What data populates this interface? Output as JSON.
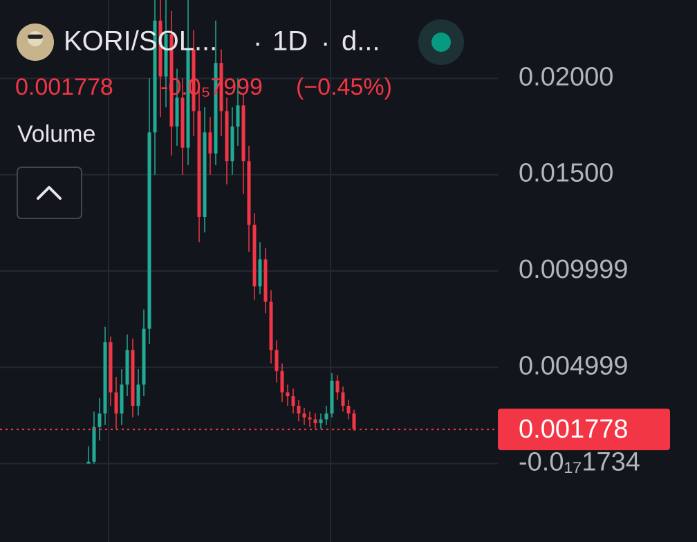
{
  "header": {
    "symbol": "KORI/SOL...",
    "interval": "1D",
    "source": "d...",
    "separator": "·",
    "price": "0.001778",
    "change": "-0.0₅7999",
    "change_pct": "(−0.45%)",
    "volume": "Volume"
  },
  "chart_data": {
    "type": "candlestick",
    "categories": [
      null,
      null,
      null,
      null,
      null,
      null,
      null,
      null,
      null,
      null,
      null,
      null,
      null,
      null,
      null,
      null,
      null,
      null,
      null,
      null,
      null,
      null,
      null,
      null,
      null,
      null,
      null,
      null,
      null,
      null,
      null,
      null,
      null,
      null,
      null,
      null,
      null,
      null,
      null,
      null,
      null,
      null,
      null,
      null,
      null,
      null,
      null,
      null,
      null
    ],
    "open": [
      0.0,
      0.0001,
      0.0019,
      0.0026,
      0.0063,
      0.0037,
      0.0026,
      0.0041,
      0.0059,
      0.003,
      0.0041,
      0.007,
      0.0172,
      0.023,
      0.0201,
      0.0223,
      0.0175,
      0.019,
      0.0164,
      0.0215,
      0.0183,
      0.0128,
      0.0172,
      0.0161,
      0.0208,
      0.0183,
      0.0157,
      0.0175,
      0.0186,
      0.0157,
      0.0124,
      0.0092,
      0.0106,
      0.0084,
      0.0059,
      0.0048,
      0.0037,
      0.0035,
      0.003,
      0.0026,
      0.0024,
      0.0023,
      0.0021,
      0.0023,
      0.0026,
      0.0043,
      0.0037,
      0.003,
      0.0026
    ],
    "high": [
      0.0009,
      0.0027,
      0.0034,
      0.0071,
      0.0066,
      0.0045,
      0.0049,
      0.0067,
      0.0065,
      0.0049,
      0.008,
      0.02,
      0.025,
      0.025,
      0.025,
      0.0235,
      0.0205,
      0.02,
      0.025,
      0.0225,
      0.0195,
      0.0185,
      0.018,
      0.023,
      0.0215,
      0.019,
      0.0185,
      0.02,
      0.0192,
      0.0165,
      0.013,
      0.0115,
      0.0112,
      0.009,
      0.0064,
      0.0052,
      0.0041,
      0.0039,
      0.0033,
      0.0029,
      0.0027,
      0.0026,
      0.0026,
      0.003,
      0.0047,
      0.0046,
      0.004,
      0.0033,
      0.0028
    ],
    "low": [
      0.0,
      0.0,
      0.0012,
      0.002,
      0.003,
      0.0018,
      0.002,
      0.0035,
      0.0024,
      0.0025,
      0.0035,
      0.0062,
      0.015,
      0.018,
      0.0185,
      0.016,
      0.0165,
      0.015,
      0.0155,
      0.017,
      0.0115,
      0.012,
      0.015,
      0.0155,
      0.017,
      0.0145,
      0.015,
      0.0165,
      0.014,
      0.011,
      0.0085,
      0.0088,
      0.0078,
      0.0052,
      0.0042,
      0.0032,
      0.003,
      0.0026,
      0.0022,
      0.002,
      0.0019,
      0.0018,
      0.0018,
      0.002,
      0.0024,
      0.0033,
      0.0027,
      0.0023,
      0.0017
    ],
    "close": [
      0.0001,
      0.0019,
      0.0026,
      0.0063,
      0.0037,
      0.0026,
      0.0041,
      0.0059,
      0.003,
      0.0041,
      0.007,
      0.0172,
      0.023,
      0.0201,
      0.0223,
      0.0175,
      0.019,
      0.0164,
      0.0215,
      0.0183,
      0.0128,
      0.0172,
      0.0161,
      0.0208,
      0.0183,
      0.0157,
      0.0175,
      0.0186,
      0.0157,
      0.0124,
      0.0092,
      0.0106,
      0.0084,
      0.0059,
      0.0048,
      0.0037,
      0.0035,
      0.003,
      0.0026,
      0.0024,
      0.0023,
      0.0021,
      0.0023,
      0.0026,
      0.0043,
      0.0037,
      0.003,
      0.0026,
      0.0018
    ],
    "up_color": "#22ab94",
    "down_color": "#f23645",
    "ylim": [
      -0.00407,
      0.02407
    ],
    "yticks": [
      {
        "value": 0.02,
        "label": "0.02000"
      },
      {
        "value": 0.015,
        "label": "0.01500"
      },
      0.009999,
      0.004999,
      {
        "value": -1.734e-18,
        "label": "-0.0₁₇1734"
      }
    ],
    "last_price": 0.001778,
    "grid": true
  }
}
